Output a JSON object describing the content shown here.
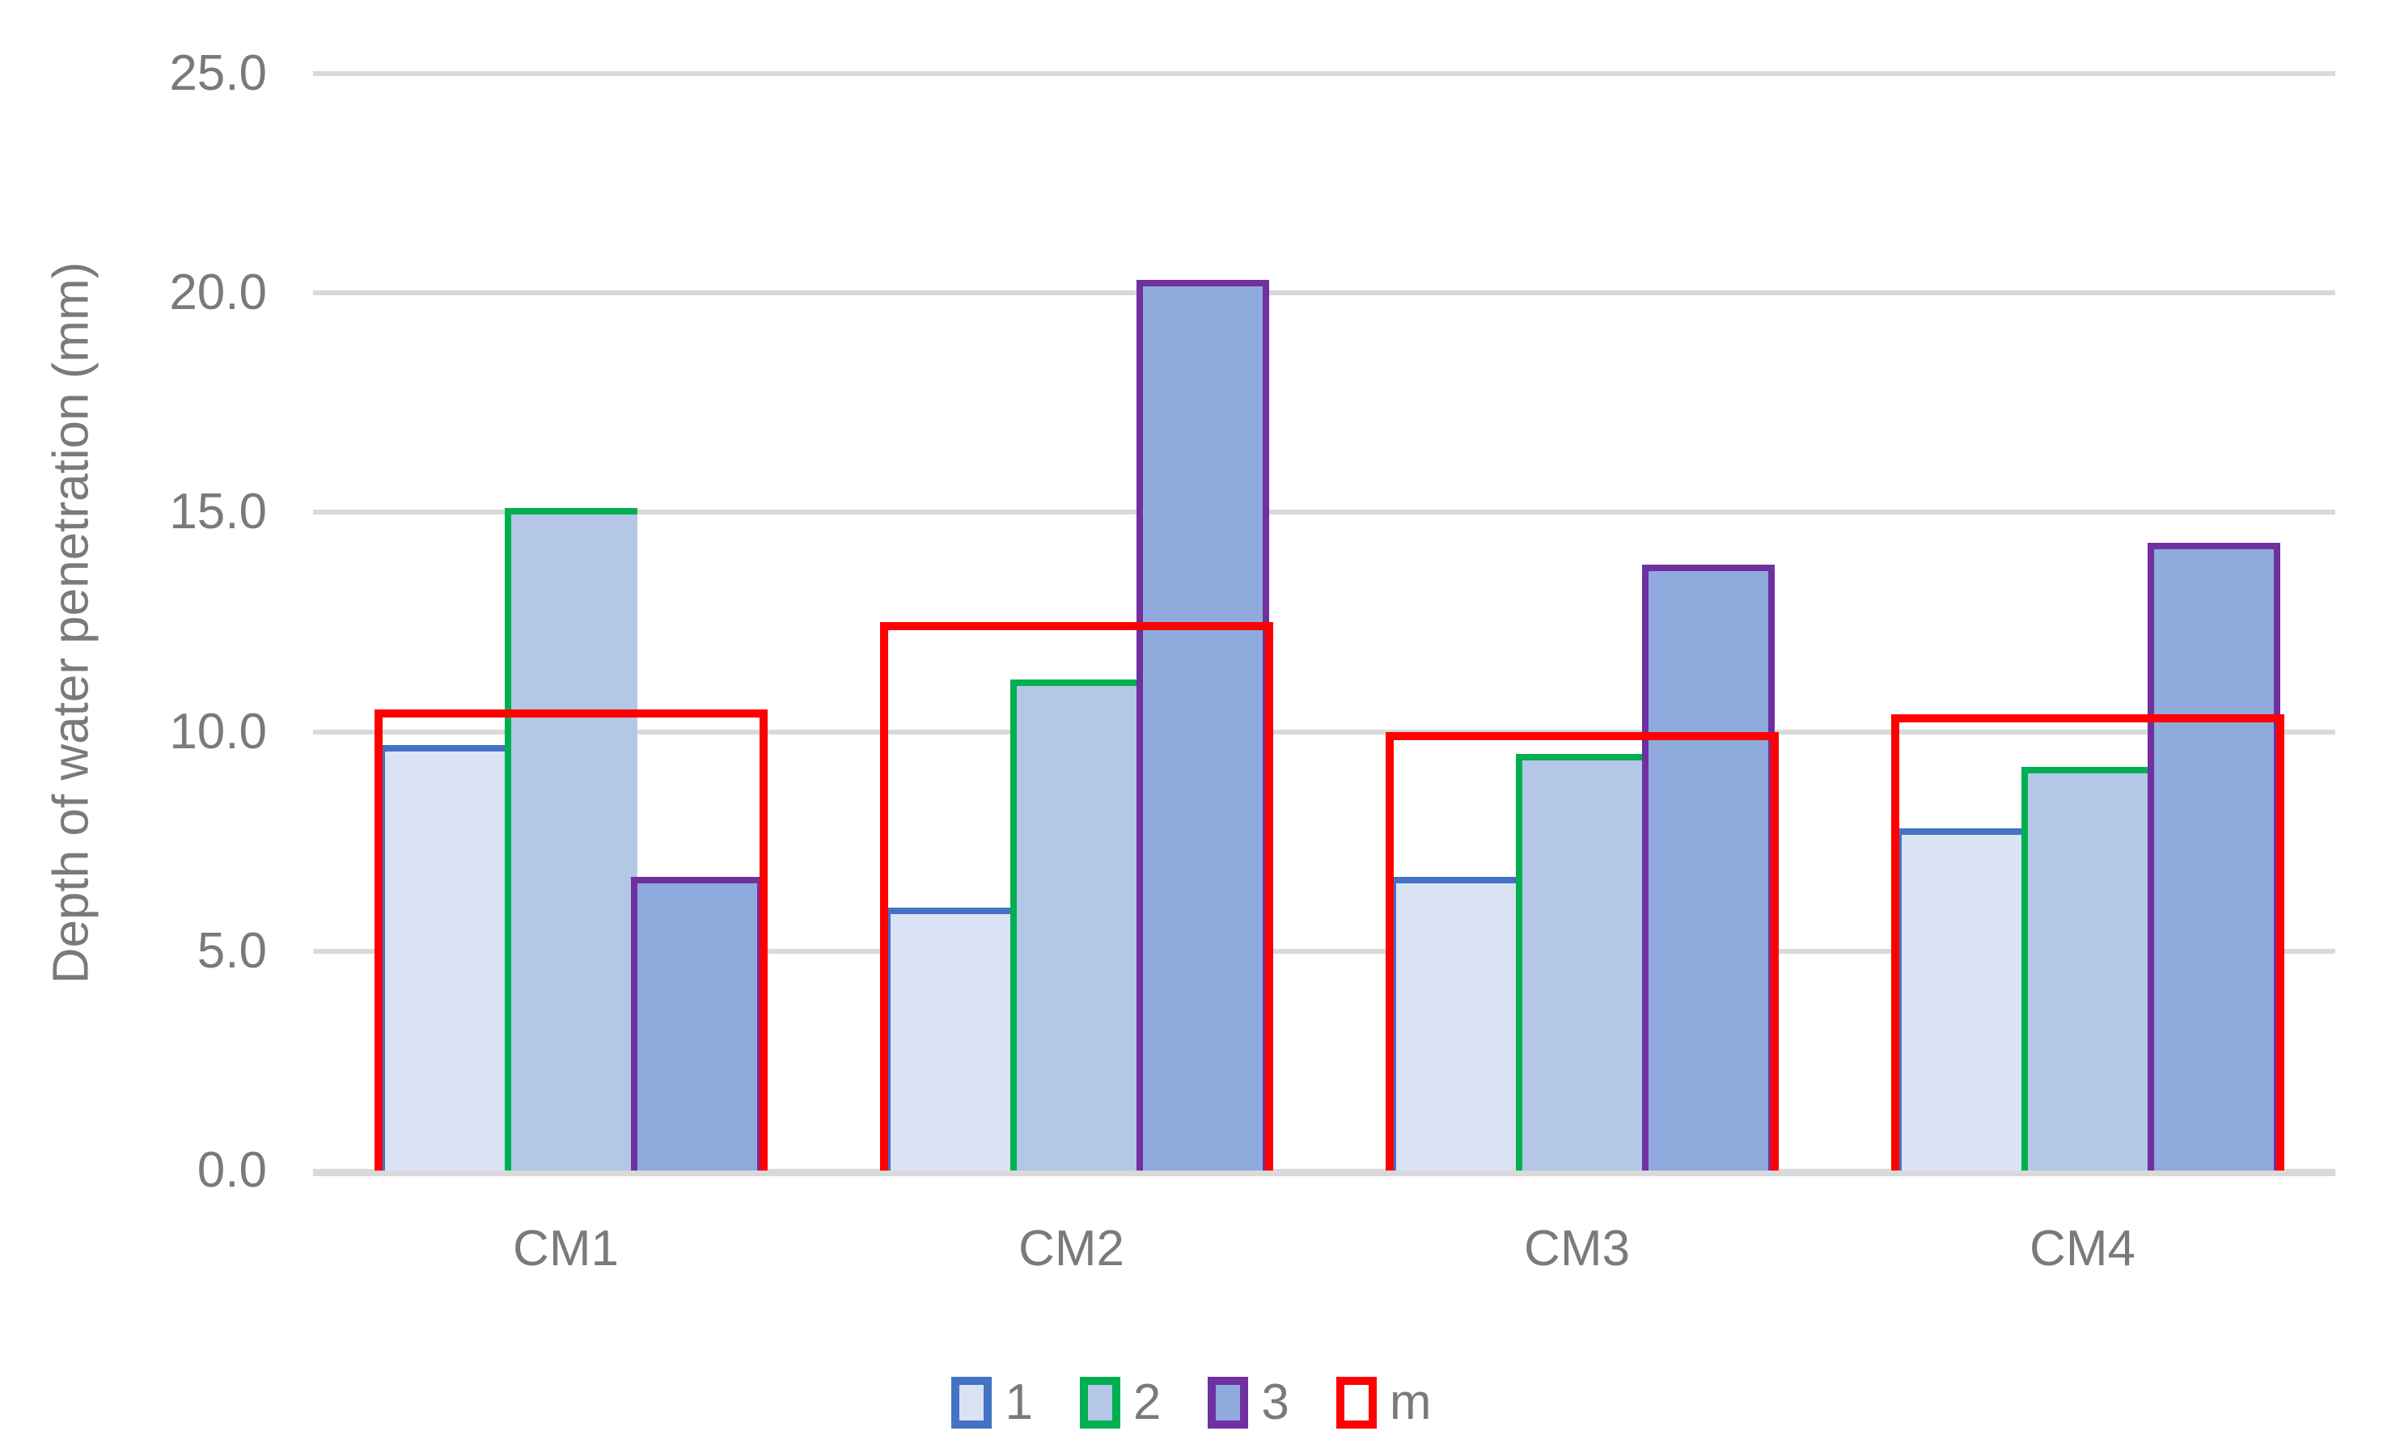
{
  "chart_data": {
    "type": "bar",
    "title": "",
    "categories": [
      "CM1",
      "CM2",
      "CM3",
      "CM4"
    ],
    "series": [
      {
        "name": "1",
        "values": [
          9.7,
          6.0,
          6.7,
          7.8
        ],
        "fill": "#DAE3F3",
        "border": "#4472C4",
        "render": "bar"
      },
      {
        "name": "2",
        "values": [
          15.1,
          11.2,
          9.5,
          9.2
        ],
        "fill": "#B4C7E7",
        "border": "#00B050",
        "render": "bar"
      },
      {
        "name": "3",
        "values": [
          6.7,
          20.3,
          13.8,
          14.3
        ],
        "fill": "#8FAADC",
        "border": "#7030A0",
        "render": "bar"
      },
      {
        "name": "m",
        "values": [
          10.5,
          12.5,
          10.0,
          10.4
        ],
        "fill": "none",
        "border": "#FF0000",
        "render": "outline_overlay"
      }
    ],
    "xlabel": "",
    "ylabel": "Depth of water penetration (mm)",
    "ylim": [
      0,
      25
    ],
    "ytick_step": 5,
    "yticks": [
      "0.0",
      "5.0",
      "10.0",
      "15.0",
      "20.0",
      "25.0"
    ],
    "grid": true,
    "legend_position": "bottom",
    "colors": {
      "gridline": "#D9D9D9",
      "axis_line": "#D9D9D9",
      "text": "#7A7A7A",
      "background": "#FFFFFF"
    }
  }
}
